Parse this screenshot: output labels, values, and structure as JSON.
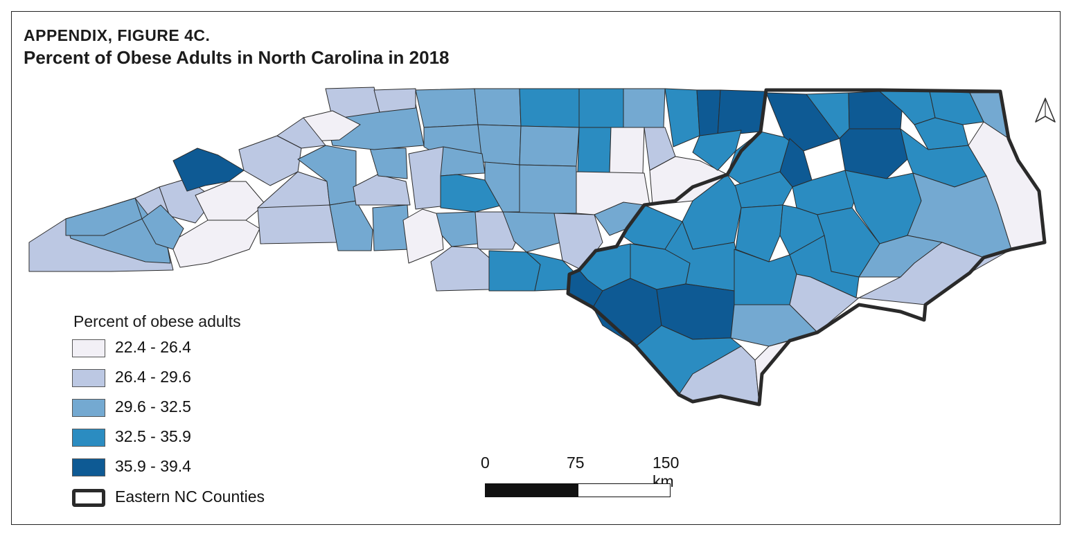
{
  "figure": {
    "label": "APPENDIX, FIGURE 4C.",
    "title": "Percent of Obese Adults in North Carolina in 2018"
  },
  "legend": {
    "title": "Percent of obese adults",
    "classes": [
      {
        "label": "22.4 - 26.4",
        "color": "#f2f0f6"
      },
      {
        "label": "26.4 - 29.6",
        "color": "#bcc8e3"
      },
      {
        "label": "29.6 - 32.5",
        "color": "#74a9d1"
      },
      {
        "label": "32.5 - 35.9",
        "color": "#2b8cc1"
      },
      {
        "label": "35.9 - 39.4",
        "color": "#0e5a94"
      }
    ],
    "outline_label": "Eastern NC Counties"
  },
  "scale": {
    "labels": [
      "0",
      "75",
      "150 km"
    ]
  },
  "north_arrow": {
    "icon": "north-arrow-icon"
  }
}
